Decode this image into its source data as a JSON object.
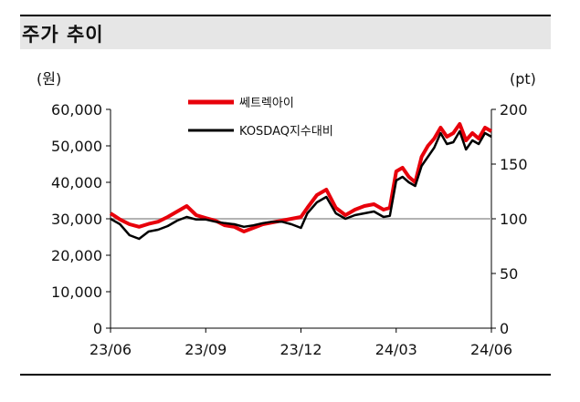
{
  "header": {
    "title": "주가 추이"
  },
  "chart_data": {
    "type": "line",
    "left_unit": "(원)",
    "right_unit": "(pt)",
    "left_axis": {
      "min": 0,
      "max": 60000,
      "ticks": [
        "0",
        "10,000",
        "20,000",
        "30,000",
        "40,000",
        "50,000",
        "60,000"
      ],
      "tick_values": [
        0,
        10000,
        20000,
        30000,
        40000,
        50000,
        60000
      ]
    },
    "right_axis": {
      "min": 0,
      "max": 200,
      "ticks": [
        "0",
        "50",
        "100",
        "150",
        "200"
      ],
      "tick_values": [
        0,
        50,
        100,
        150,
        200
      ]
    },
    "x_axis": {
      "min": 0,
      "max": 12,
      "ticks": [
        "23/06",
        "23/09",
        "23/12",
        "24/03",
        "24/06"
      ],
      "tick_values": [
        0,
        3,
        6,
        9,
        12
      ]
    },
    "reference_line": {
      "axis": "right",
      "value": 100,
      "color": "#b3b3b3"
    },
    "legend_position": "top-center",
    "grid": false,
    "series": [
      {
        "name": "쎄트렉아이",
        "axis": "left",
        "color": "#e8000b",
        "x": [
          0,
          0.3,
          0.6,
          0.9,
          1.2,
          1.5,
          1.8,
          2.1,
          2.4,
          2.7,
          3.0,
          3.3,
          3.6,
          3.9,
          4.2,
          4.5,
          4.8,
          5.1,
          5.4,
          5.7,
          6.0,
          6.2,
          6.5,
          6.8,
          7.1,
          7.4,
          7.7,
          8.0,
          8.3,
          8.6,
          8.8,
          9.0,
          9.2,
          9.4,
          9.6,
          9.8,
          10.0,
          10.2,
          10.4,
          10.6,
          10.8,
          11.0,
          11.2,
          11.4,
          11.6,
          11.8,
          12.0
        ],
        "values": [
          31500,
          29800,
          28500,
          27800,
          28600,
          29200,
          30500,
          32000,
          33500,
          31000,
          30200,
          29500,
          28200,
          27800,
          26500,
          27500,
          28500,
          29000,
          29500,
          30000,
          30500,
          33000,
          36500,
          38000,
          33000,
          31000,
          32500,
          33500,
          34000,
          32500,
          33000,
          43000,
          44000,
          41500,
          40000,
          47000,
          50000,
          52000,
          55000,
          52500,
          53500,
          56000,
          51500,
          53500,
          52000,
          55000,
          54000
        ]
      },
      {
        "name": "KOSDAQ지수대비",
        "axis": "left",
        "color": "#000000",
        "x": [
          0,
          0.3,
          0.6,
          0.9,
          1.2,
          1.5,
          1.8,
          2.1,
          2.4,
          2.7,
          3.0,
          3.3,
          3.6,
          3.9,
          4.2,
          4.5,
          4.8,
          5.1,
          5.4,
          5.7,
          6.0,
          6.2,
          6.5,
          6.8,
          7.1,
          7.4,
          7.7,
          8.0,
          8.3,
          8.6,
          8.8,
          9.0,
          9.2,
          9.4,
          9.6,
          9.8,
          10.0,
          10.2,
          10.4,
          10.6,
          10.8,
          11.0,
          11.2,
          11.4,
          11.6,
          11.8,
          12.0
        ],
        "values": [
          30000,
          28500,
          25500,
          24500,
          26500,
          27000,
          28000,
          29500,
          30500,
          29800,
          29800,
          29200,
          28800,
          28500,
          27800,
          28200,
          28800,
          29200,
          29200,
          28500,
          27500,
          31500,
          34500,
          36000,
          31500,
          30000,
          31000,
          31500,
          32000,
          30500,
          30800,
          40500,
          41500,
          40000,
          39000,
          44500,
          47000,
          49500,
          53500,
          50500,
          51000,
          54000,
          49000,
          51500,
          50500,
          53500,
          52500
        ]
      }
    ]
  }
}
